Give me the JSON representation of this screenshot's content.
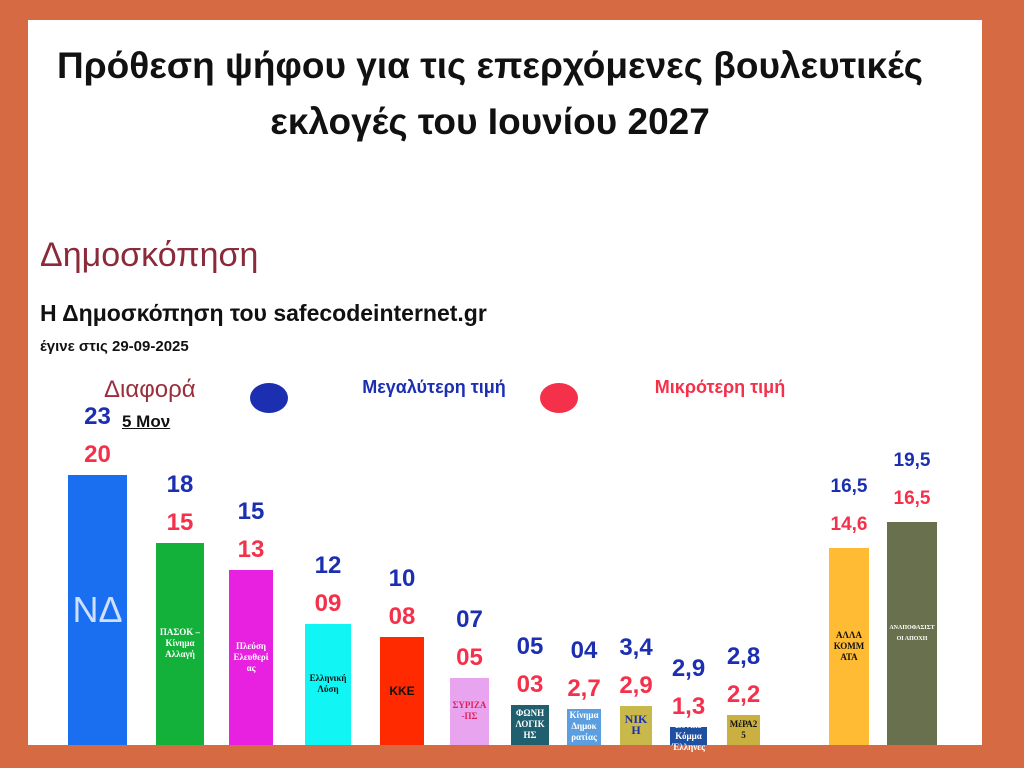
{
  "chart_data": {
    "type": "bar",
    "title": "Πρόθεση ψήφου για τις επερχόμενες βουλευτικές εκλογές του Ιουνίου 2027",
    "subtitle": "Δημοσκόπηση",
    "source": "Η Δημοσκόπηση του safecodeinternet.gr",
    "date_note": "έγινε στις 29-09-2025",
    "difference_label": "Διαφορά",
    "difference_value": "5 Μον",
    "categories": [
      "ΝΔ",
      "ΠΑΣΟΚ – Κίνημα Αλλαγή",
      "Πλεύση Ελευθερίας",
      "Ελληνική Λύση",
      "ΚΚΕ",
      "ΣΥΡΙΖΑ -ΠΣ",
      "ΦΩΝΗ ΛΟΓΙΚΗΣ",
      "Κίνημα Δημοκρατίας",
      "ΝΙΚΗ",
      "Εθνικό Κόμμα Έλληνες",
      "ΜέΡΑ25",
      "ΑΛΛΑ ΚΟΜΜΑΤΑ",
      "ΑΝΑΠΟΦΑΣΙΣΤΟΙ ΑΠΟΧΗ"
    ],
    "colors": [
      "#1a6ef0",
      "#13b13a",
      "#e820e0",
      "#11f5f5",
      "#ff2a00",
      "#e9a4ef",
      "#1f5f6e",
      "#5b9fe0",
      "#c9b84a",
      "#1f4fa0",
      "#c9b040",
      "#ffbb33",
      "#69704d"
    ],
    "series": [
      {
        "name": "Μεγαλύτερη τιμή",
        "color": "#1b2fb0",
        "values": [
          23,
          18,
          15,
          12,
          10,
          7,
          5,
          4,
          3.4,
          2.9,
          2.8,
          16.5,
          19.5
        ],
        "value_labels": [
          "23",
          "18",
          "15",
          "12",
          "10",
          "07",
          "05",
          "04",
          "3,4",
          "2,9",
          "2,8",
          "16,5",
          "19,5"
        ]
      },
      {
        "name": "Μικρότερη τιμή",
        "color": "#f5304a",
        "values": [
          20,
          15,
          13,
          9,
          8,
          5,
          3,
          2.7,
          2.9,
          1.3,
          2.2,
          14.6,
          16.5
        ],
        "value_labels": [
          "20",
          "15",
          "13",
          "09",
          "08",
          "05",
          "03",
          "2,7",
          "2,9",
          "1,3",
          "2,2",
          "14,6",
          "16,5"
        ]
      }
    ]
  }
}
